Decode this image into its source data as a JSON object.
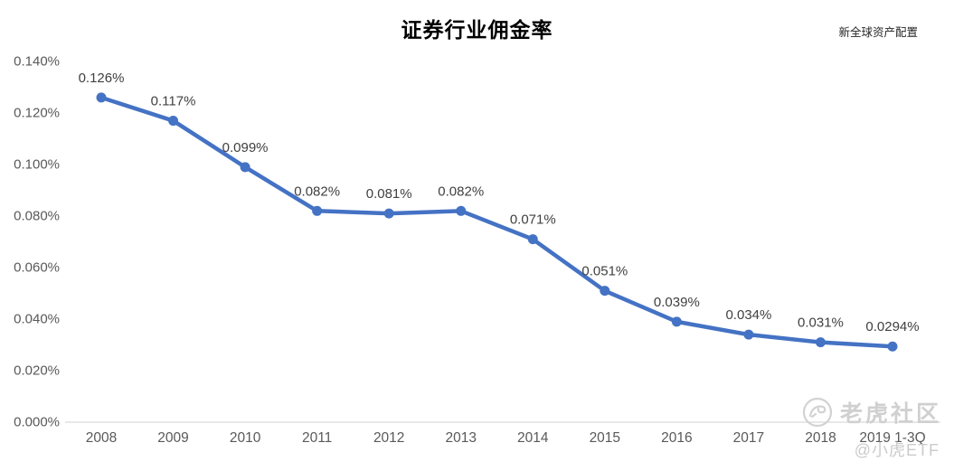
{
  "title": "证券行业佣金率",
  "source_label": "新全球资产配置",
  "watermark": {
    "community": "老虎社区",
    "handle": "@小虎ETF"
  },
  "chart_data": {
    "type": "line",
    "title": "证券行业佣金率",
    "xlabel": "",
    "ylabel": "",
    "categories": [
      "2008",
      "2009",
      "2010",
      "2011",
      "2012",
      "2013",
      "2014",
      "2015",
      "2016",
      "2017",
      "2018",
      "2019 1-3Q"
    ],
    "values": [
      0.126,
      0.117,
      0.099,
      0.082,
      0.081,
      0.082,
      0.071,
      0.051,
      0.039,
      0.034,
      0.031,
      0.0294
    ],
    "point_labels": [
      "0.126%",
      "0.117%",
      "0.099%",
      "0.082%",
      "0.081%",
      "0.082%",
      "0.071%",
      "0.051%",
      "0.039%",
      "0.034%",
      "0.031%",
      "0.0294%"
    ],
    "ylim": [
      0,
      0.14
    ],
    "ytick_step": 0.02,
    "ytick_labels": [
      "0.000%",
      "0.020%",
      "0.040%",
      "0.060%",
      "0.080%",
      "0.100%",
      "0.120%",
      "0.140%"
    ],
    "grid": false,
    "legend": false,
    "colors": {
      "line": "#4472C4",
      "marker": "#4472C4",
      "data_label": "#404040",
      "tick_label": "#595959",
      "axis_line": "#D9D9D9"
    }
  }
}
